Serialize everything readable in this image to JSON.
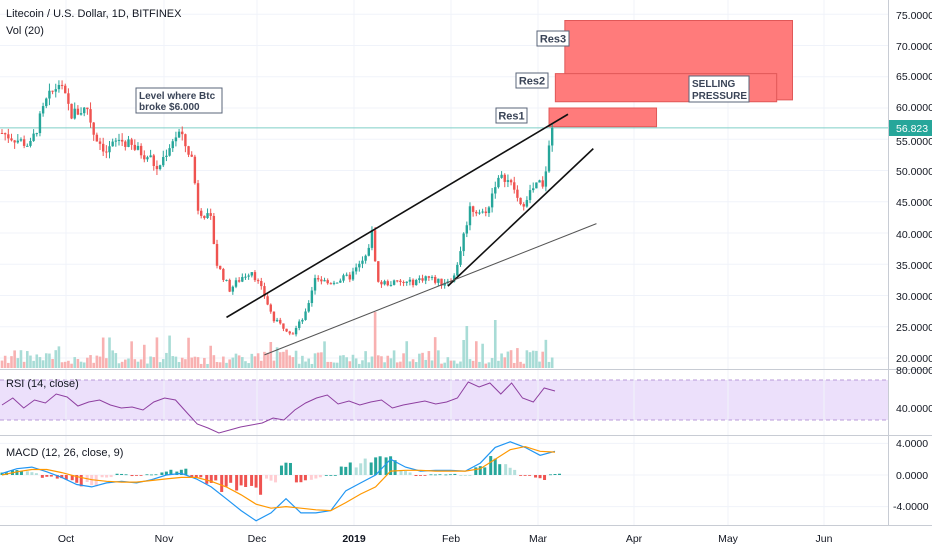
{
  "header": {
    "symbol_line": "Litecoin / U.S. Dollar, 1D, BITFINEX",
    "volume_label": "Vol (20)"
  },
  "price_axis": {
    "ticks": [
      "75.0000",
      "70.0000",
      "65.0000",
      "60.0000",
      "55.0000",
      "50.0000",
      "45.0000",
      "40.0000",
      "35.0000",
      "30.0000",
      "25.0000",
      "20.0000"
    ],
    "last_price": "56.823"
  },
  "time_axis": {
    "ticks": [
      "Oct",
      "Nov",
      "Dec",
      "2019",
      "Feb",
      "Mar",
      "Apr",
      "May",
      "Jun"
    ]
  },
  "annotations": {
    "btc_level_line1": "Level where Btc",
    "btc_level_line2": "broke $6.000",
    "res1": "Res1",
    "res2": "Res2",
    "res3": "Res3",
    "selling_line1": "SELLING",
    "selling_line2": "PRESSURE"
  },
  "rsi": {
    "label": "RSI (14, close)",
    "ticks": [
      "80.0000",
      "40.0000"
    ]
  },
  "macd": {
    "label": "MACD (12, 26, close, 9)",
    "ticks": [
      "4.0000",
      "0.0000",
      "-4.0000"
    ]
  },
  "colors": {
    "up": "#26a69a",
    "down": "#ef5350",
    "res_zone": "#ff7b7b",
    "rsi_line": "#8e3fa0",
    "rsi_band": "#ece0fb",
    "macd_line": "#2196f3",
    "signal_line": "#ff9800",
    "last_price_line": "#7fcfc8"
  },
  "chart_data": [
    {
      "type": "candlestick",
      "title": "Litecoin / U.S. Dollar, 1D, BITFINEX",
      "ylim": [
        19,
        77
      ],
      "price_keypoints": [
        {
          "x": "2018-09-13",
          "y": 56
        },
        {
          "x": "2018-09-22",
          "y": 54
        },
        {
          "x": "2018-09-27",
          "y": 61
        },
        {
          "x": "2018-10-01",
          "y": 64
        },
        {
          "x": "2018-10-05",
          "y": 59
        },
        {
          "x": "2018-10-10",
          "y": 60
        },
        {
          "x": "2018-10-12",
          "y": 56
        },
        {
          "x": "2018-10-16",
          "y": 53
        },
        {
          "x": "2018-10-20",
          "y": 55
        },
        {
          "x": "2018-10-30",
          "y": 52
        },
        {
          "x": "2018-11-01",
          "y": 50
        },
        {
          "x": "2018-11-06",
          "y": 55
        },
        {
          "x": "2018-11-08",
          "y": 56
        },
        {
          "x": "2018-11-12",
          "y": 52
        },
        {
          "x": "2018-11-14",
          "y": 44
        },
        {
          "x": "2018-11-18",
          "y": 42
        },
        {
          "x": "2018-11-20",
          "y": 35
        },
        {
          "x": "2018-11-24",
          "y": 31
        },
        {
          "x": "2018-11-28",
          "y": 33
        },
        {
          "x": "2018-12-01",
          "y": 34
        },
        {
          "x": "2018-12-05",
          "y": 30
        },
        {
          "x": "2018-12-08",
          "y": 26
        },
        {
          "x": "2018-12-14",
          "y": 24
        },
        {
          "x": "2018-12-18",
          "y": 27
        },
        {
          "x": "2018-12-21",
          "y": 33
        },
        {
          "x": "2018-12-25",
          "y": 32
        },
        {
          "x": "2019-01-01",
          "y": 33
        },
        {
          "x": "2019-01-06",
          "y": 36
        },
        {
          "x": "2019-01-08",
          "y": 40
        },
        {
          "x": "2019-01-10",
          "y": 32
        },
        {
          "x": "2019-01-15",
          "y": 32
        },
        {
          "x": "2019-01-20",
          "y": 32
        },
        {
          "x": "2019-01-25",
          "y": 33
        },
        {
          "x": "2019-01-30",
          "y": 32
        },
        {
          "x": "2019-02-03",
          "y": 33
        },
        {
          "x": "2019-02-08",
          "y": 44
        },
        {
          "x": "2019-02-13",
          "y": 43
        },
        {
          "x": "2019-02-16",
          "y": 48
        },
        {
          "x": "2019-02-19",
          "y": 49
        },
        {
          "x": "2019-02-22",
          "y": 47
        },
        {
          "x": "2019-02-24",
          "y": 44
        },
        {
          "x": "2019-02-26",
          "y": 46
        },
        {
          "x": "2019-03-02",
          "y": 48
        },
        {
          "x": "2019-03-03",
          "y": 47
        },
        {
          "x": "2019-03-06",
          "y": 56.823
        }
      ],
      "zones": [
        {
          "name": "Res1",
          "x0": "2019-03-05",
          "x1": "2019-04-08",
          "y0": 57,
          "y1": 60
        },
        {
          "name": "Res2",
          "x0": "2019-03-07",
          "x1": "2019-05-16",
          "y0": 61,
          "y1": 65.5
        },
        {
          "name": "Res3",
          "x0": "2019-03-10",
          "x1": "2019-05-21",
          "y0": 61.3,
          "y1": 74
        }
      ],
      "trendlines": [
        {
          "x0": "2018-11-23",
          "y0": 26.5,
          "x1": "2019-03-11",
          "y1": 59
        },
        {
          "x0": "2019-02-01",
          "y0": 31.5,
          "x1": "2019-03-19",
          "y1": 53.5
        },
        {
          "x0": "2018-12-05",
          "y0": 20.5,
          "x1": "2019-03-20",
          "y1": 41.5
        }
      ],
      "last_price": 56.823
    },
    {
      "type": "line",
      "title": "RSI (14, close)",
      "ylim": [
        20,
        85
      ],
      "series": [
        {
          "values": [
            55,
            62,
            52,
            60,
            57,
            66,
            63,
            54,
            58,
            60,
            55,
            52,
            53,
            50,
            58,
            62,
            60,
            48,
            36,
            32,
            27,
            30,
            33,
            35,
            37,
            42,
            40,
            50,
            57,
            62,
            65,
            56,
            59,
            55,
            58,
            60,
            52,
            55,
            57,
            59,
            56,
            58,
            62,
            78,
            73,
            77,
            66,
            77,
            62,
            58,
            72,
            69
          ]
        }
      ],
      "bands": [
        30,
        70
      ]
    },
    {
      "type": "line",
      "title": "MACD (12, 26, close, 9)",
      "ylim": [
        -6,
        5
      ],
      "series": [
        {
          "values": [
            0.2,
            0.8,
            1.0,
            0.4,
            -0.3,
            -1.2,
            -1.5,
            -1.0,
            -0.8,
            -1.0,
            -0.6,
            0.0,
            0.2,
            -0.5,
            -1.5,
            -3.0,
            -4.5,
            -5.8,
            -4.8,
            -3.0,
            -4.8,
            -4.8,
            -4.5,
            -2.0,
            -1.0,
            0.0,
            2.0,
            1.0,
            0.5,
            0.6,
            0.6,
            0.5,
            1.5,
            3.5,
            4.2,
            3.5,
            2.5,
            3.0
          ]
        },
        {
          "values": [
            0.0,
            0.4,
            0.7,
            0.7,
            0.3,
            -0.2,
            -0.6,
            -0.8,
            -0.9,
            -0.9,
            -0.7,
            -0.5,
            -0.3,
            -0.3,
            -0.8,
            -1.5,
            -2.5,
            -3.7,
            -4.2,
            -4.0,
            -4.2,
            -4.4,
            -4.5,
            -3.5,
            -2.4,
            -1.5,
            0.5,
            0.6,
            0.6,
            0.5,
            0.5,
            0.5,
            0.8,
            2.0,
            3.2,
            3.6,
            3.0,
            2.9
          ]
        }
      ]
    }
  ]
}
